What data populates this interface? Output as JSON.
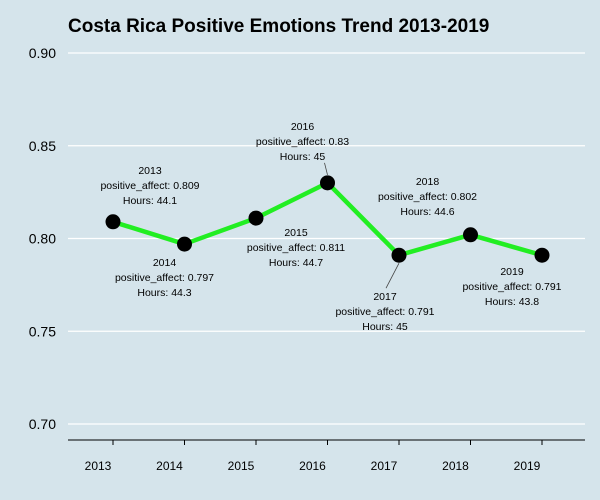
{
  "chart_data": {
    "type": "line",
    "title": "Costa Rica Positive Emotions Trend 2013-2019",
    "xlabel": "",
    "ylabel": "",
    "x": [
      2013,
      2014,
      2015,
      2016,
      2017,
      2018,
      2019
    ],
    "ylim": [
      0.7,
      0.9
    ],
    "yticks": [
      "0.90",
      "0.85",
      "0.80",
      "0.75",
      "0.70"
    ],
    "xticks": [
      "2013",
      "2014",
      "2015",
      "2016",
      "2017",
      "2018",
      "2019"
    ],
    "grid": "horizontal",
    "series": [
      {
        "values": [
          0.809,
          0.797,
          0.811,
          0.83,
          0.791,
          0.802,
          0.791
        ],
        "line_color": "#22ee22",
        "marker_color": "#000000"
      }
    ],
    "annotations": [
      {
        "year": "2013",
        "affect": "positive_affect: 0.809",
        "hours": "Hours: 44.1",
        "position": "above"
      },
      {
        "year": "2014",
        "affect": "positive_affect: 0.797",
        "hours": "Hours: 44.3",
        "position": "below"
      },
      {
        "year": "2015",
        "affect": "positive_affect: 0.811",
        "hours": "Hours: 44.7",
        "position": "below"
      },
      {
        "year": "2016",
        "affect": "positive_affect: 0.83",
        "hours": "Hours: 45",
        "position": "above"
      },
      {
        "year": "2017",
        "affect": "positive_affect: 0.791",
        "hours": "Hours: 45",
        "position": "below"
      },
      {
        "year": "2018",
        "affect": "positive_affect: 0.802",
        "hours": "Hours: 44.6",
        "position": "above"
      },
      {
        "year": "2019",
        "affect": "positive_affect: 0.791",
        "hours": "Hours: 43.8",
        "position": "below"
      }
    ]
  }
}
